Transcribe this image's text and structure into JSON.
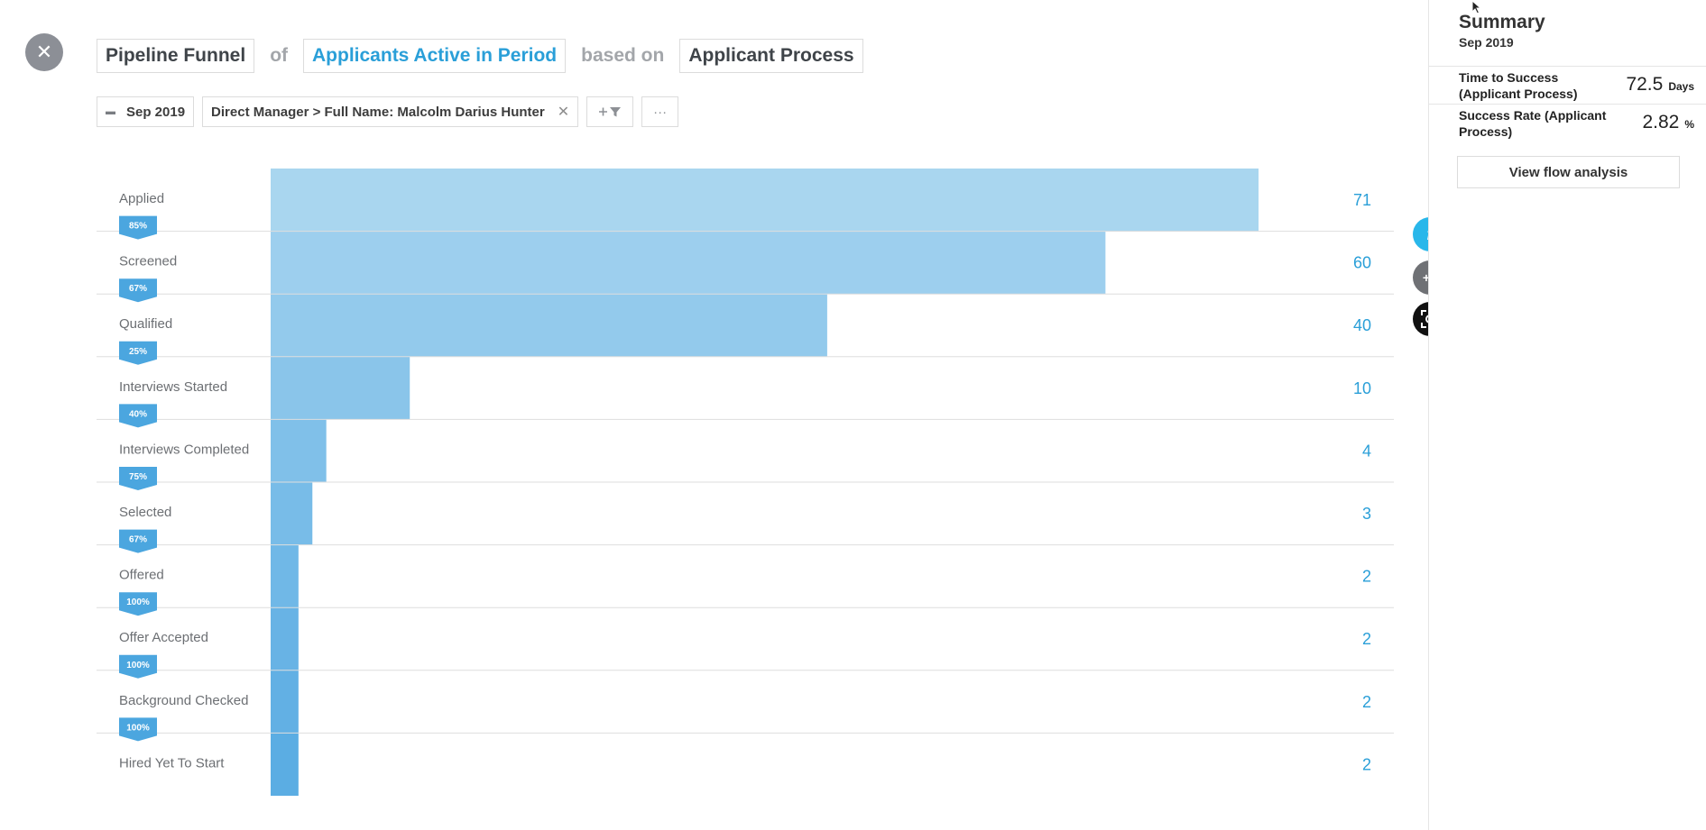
{
  "header": {
    "metric": "Pipeline Funnel",
    "of": "of",
    "population": "Applicants Active in Period",
    "based_on": "based on",
    "process": "Applicant Process"
  },
  "filters": {
    "date": "Sep 2019",
    "manager_filter": "Direct Manager > Full Name: Malcolm Darius Hunter",
    "add_filter_icon": "plus-funnel-icon",
    "more": "···"
  },
  "chart_data": {
    "type": "bar",
    "orientation": "horizontal-funnel",
    "categories": [
      "Applied",
      "Screened",
      "Qualified",
      "Interviews Started",
      "Interviews Completed",
      "Selected",
      "Offered",
      "Offer Accepted",
      "Background Checked",
      "Hired Yet To Start"
    ],
    "values": [
      71,
      60,
      40,
      10,
      4,
      3,
      2,
      2,
      2,
      2
    ],
    "conversion_rates": [
      "85%",
      "67%",
      "25%",
      "40%",
      "75%",
      "67%",
      "100%",
      "100%",
      "100%"
    ],
    "bar_colors": [
      "#a9d6ef",
      "#9dcfee",
      "#93caec",
      "#8ac5ea",
      "#80c0e9",
      "#78bce8",
      "#70b8e7",
      "#68b3e5",
      "#62b0e4",
      "#5badE3"
    ]
  },
  "sidebar": {
    "title": "Summary",
    "date": "Sep 2019",
    "metrics": [
      {
        "label": "Time to Success (Applicant Process)",
        "value": "72.5",
        "unit": "Days"
      },
      {
        "label": "Success Rate (Applicant Process)",
        "value": "2.82",
        "unit": "%"
      }
    ],
    "flow_button": "View flow analysis"
  },
  "fabs": {
    "info": "i",
    "add_list": "+≡"
  }
}
